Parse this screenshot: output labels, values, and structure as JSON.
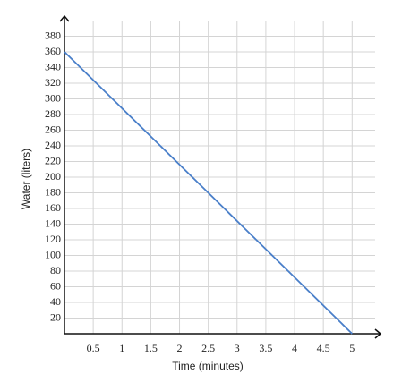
{
  "chart_data": {
    "type": "line",
    "x_label": "Time (minutes)",
    "y_label": "Water (liters)",
    "x": [
      0,
      5
    ],
    "series": [
      {
        "name": "Water",
        "color": "#4a7fc9",
        "values": [
          360,
          0
        ]
      }
    ],
    "xlim": [
      0,
      5.4
    ],
    "ylim": [
      0,
      400
    ],
    "xticks": [
      0.5,
      1,
      1.5,
      2,
      2.5,
      3,
      3.5,
      4,
      4.5,
      5
    ],
    "yticks": [
      20,
      40,
      60,
      80,
      100,
      120,
      140,
      160,
      180,
      200,
      220,
      240,
      260,
      280,
      300,
      320,
      340,
      360,
      380
    ],
    "grid": true
  }
}
